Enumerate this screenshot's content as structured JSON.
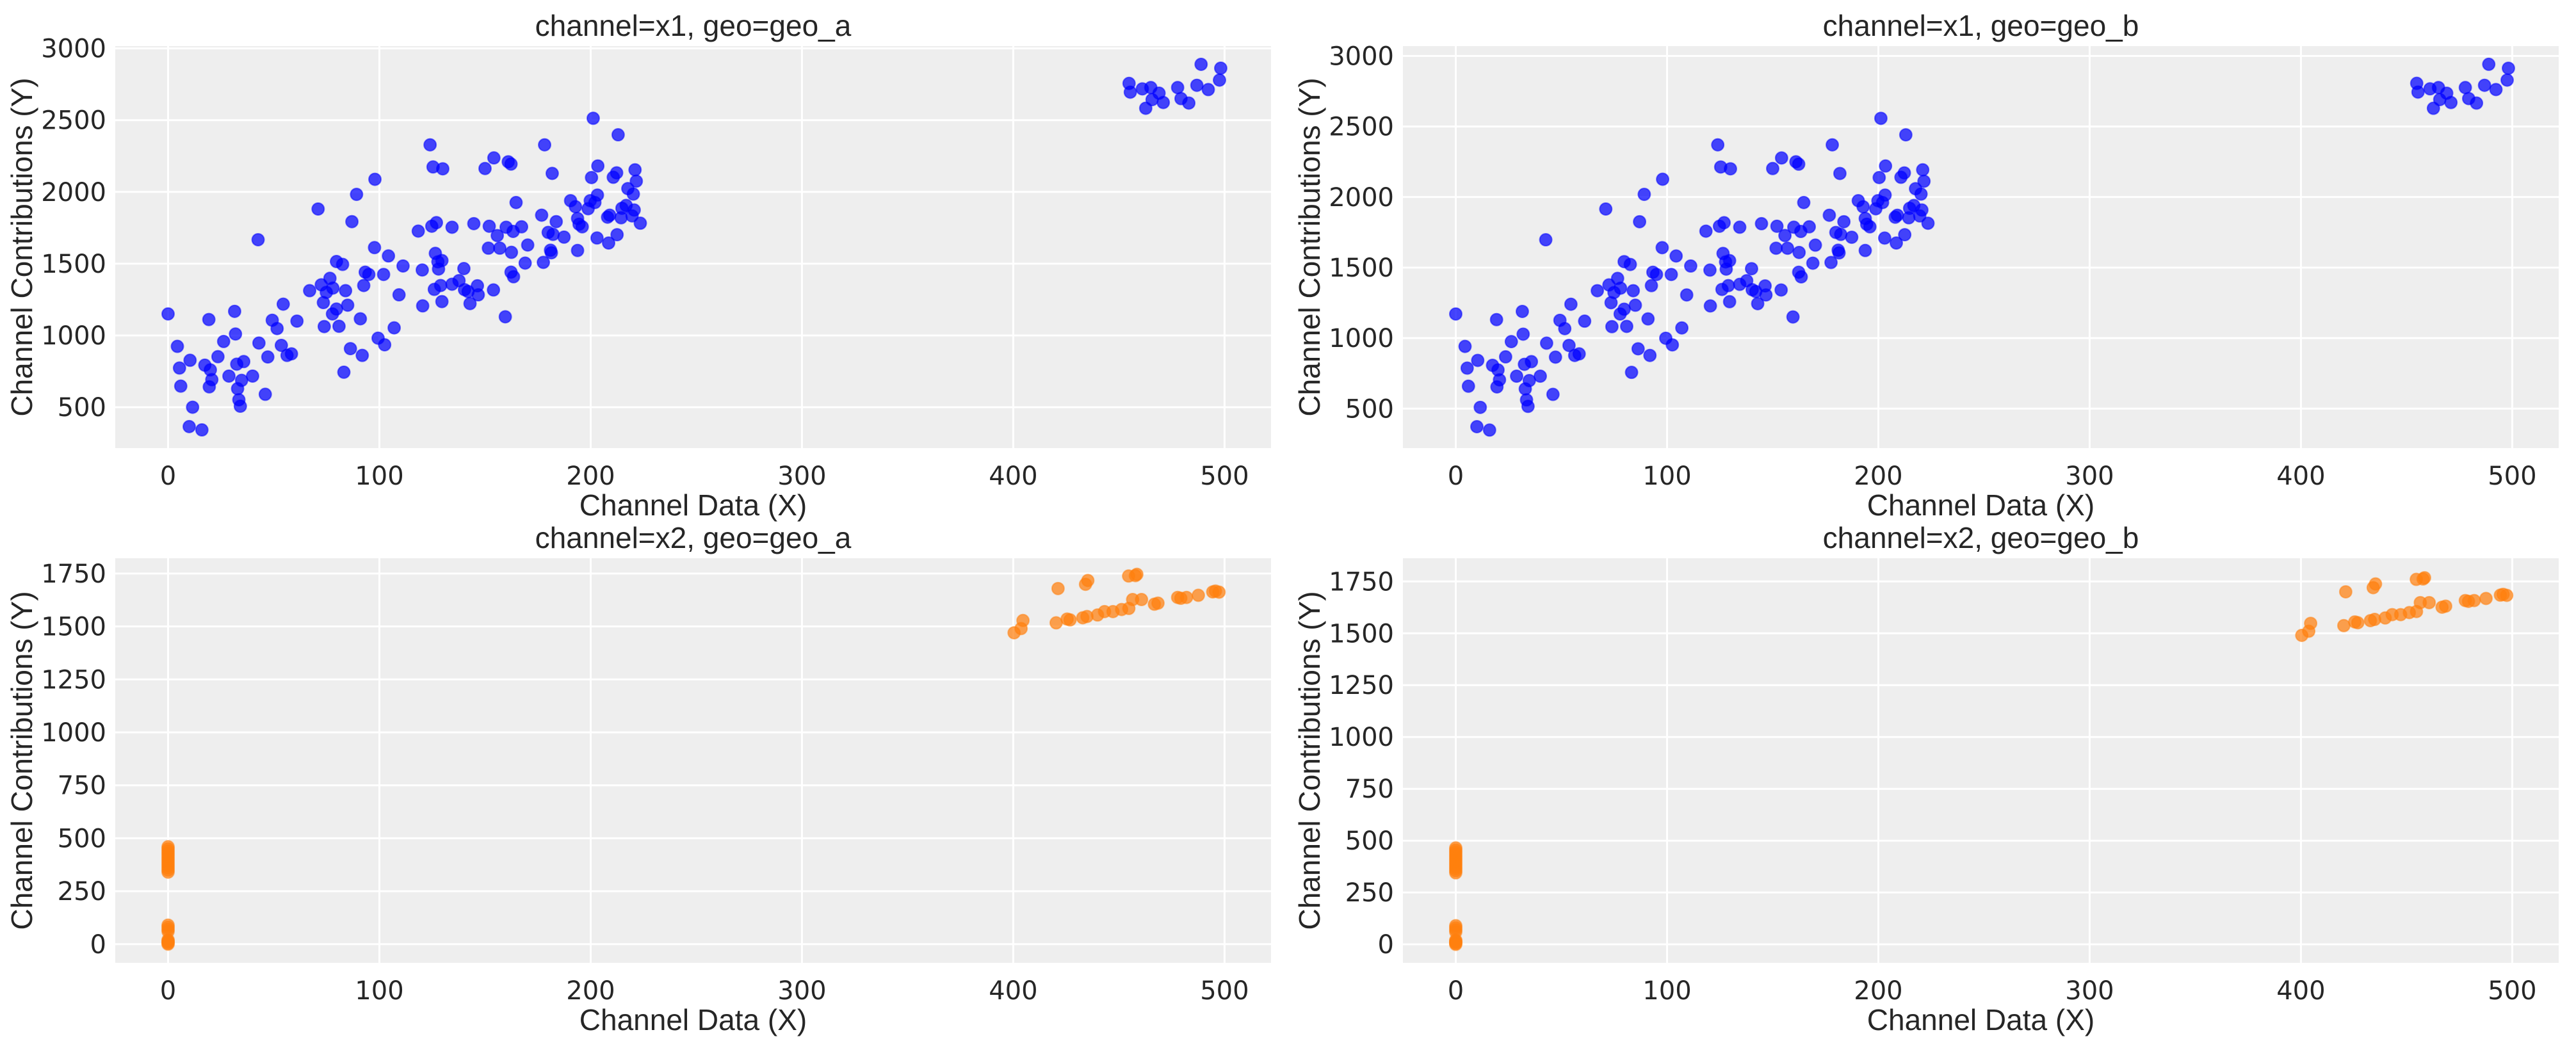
{
  "chart_data": [
    {
      "type": "scatter",
      "title": "channel=x1, geo=geo_a",
      "xlabel": "Channel Data (X)",
      "ylabel": "Channel Contributions (Y)",
      "xlim": [
        -25,
        522
      ],
      "ylim": [
        215,
        3016
      ],
      "xticks": [
        0,
        100,
        200,
        300,
        400,
        500
      ],
      "yticks": [
        500,
        1000,
        1500,
        2000,
        2500,
        3000
      ],
      "grid": true,
      "color": "#0000ff",
      "series": [
        {
          "name": "x1 geo_a",
          "x": [
            0,
            4.4,
            5.4,
            6,
            10.4,
            11.6,
            10,
            16,
            17.4,
            19.3,
            20,
            20.7,
            19.5,
            23.6,
            26.3,
            28.8,
            31.5,
            31.9,
            32.5,
            32.9,
            33.5,
            34.2,
            34.8,
            35.8,
            40,
            42.6,
            43,
            46,
            47.2,
            49.3,
            51.6,
            53.6,
            54.5,
            56.3,
            58.4,
            61,
            67,
            71,
            72.5,
            73.5,
            73.9,
            74.9,
            76.6,
            78,
            77.8,
            79.7,
            79.7,
            80.9,
            82.6,
            83.2,
            84,
            85,
            86.3,
            87,
            89.2,
            91,
            91.9,
            92.6,
            93.3,
            95,
            97.7,
            97.9,
            99.4,
            102,
            102.5,
            104.3,
            107,
            109.3,
            111.2,
            118.4,
            120.3,
            120.5,
            124,
            124.8,
            125.4,
            126,
            126.5,
            127,
            127.7,
            128,
            129,
            129.6,
            129.6,
            130,
            134.4,
            134.4,
            137.7,
            140,
            140.3,
            142,
            142.9,
            144.7,
            146.4,
            146.8,
            150,
            151.6,
            152,
            154,
            154.2,
            155.8,
            157,
            159.6,
            160,
            161,
            162.3,
            162.5,
            162.3,
            163.3,
            163.5,
            164.7,
            167.3,
            169,
            170.2,
            176.8,
            177.6,
            178.2,
            179.9,
            181,
            181.4,
            181.8,
            182.2,
            183.7,
            187.4,
            190.5,
            192.8,
            193.8,
            193.8,
            194.5,
            196,
            198.8,
            199.8,
            200.4,
            201.2,
            202,
            203,
            203.2,
            203.4,
            208.5,
            208,
            209,
            210.7,
            212.3,
            212.5,
            213,
            214.4,
            214.8,
            216.8,
            217.6,
            219.6,
            220.2,
            220.6,
            221,
            221.6,
            223.5,
            454.8,
            455.4,
            461.1,
            462.7,
            465.1,
            465.7,
            469,
            471,
            477.8,
            479.4,
            483.1,
            486.9,
            488.9,
            492.3,
            497.6,
            498.2
          ],
          "y": [
            1150,
            924,
            773,
            647,
            827,
            500,
            365,
            342,
            793,
            1111,
            760,
            692,
            642,
            852,
            958,
            717,
            1168,
            1010,
            800,
            629,
            552,
            507,
            687,
            818,
            717,
            1667,
            947,
            590,
            850,
            1106,
            1048,
            931,
            1218,
            861,
            872,
            1100,
            1312,
            1881,
            1353,
            1229,
            1062,
            1300,
            1398,
            1330,
            1150,
            1184,
            1515,
            1064,
            1495,
            744,
            1312,
            1211,
            908,
            1793,
            1983,
            1116,
            861,
            1348,
            1441,
            1425,
            1612,
            2088,
            981,
            1425,
            935,
            1554,
            1053,
            1283,
            1484,
            1727,
            1456,
            1206,
            2328,
            1761,
            2174,
            1321,
            1572,
            1786,
            1513,
            1463,
            1348,
            1236,
            1522,
            2161,
            1754,
            1357,
            1382,
            1466,
            1319,
            1306,
            1222,
            1779,
            1346,
            1283,
            2163,
            1608,
            1761,
            1317,
            2237,
            1696,
            1608,
            1130,
            1754,
            2210,
            2194,
            1579,
            1441,
            1725,
            1409,
            1926,
            1757,
            1504,
            1630,
            1838,
            1509,
            2328,
            1718,
            1594,
            1576,
            2129,
            1704,
            1793,
            1685,
            1939,
            1897,
            1815,
            1592,
            1775,
            1757,
            1883,
            1939,
            2100,
            2513,
            1926,
            1679,
            1978,
            2181,
            1644,
            1824,
            1838,
            2102,
            2133,
            1702,
            2398,
            1820,
            1886,
            1906,
            2023,
            1833,
            1985,
            1874,
            2154,
            2075,
            1782,
            2756,
            2695,
            2718,
            2583,
            2727,
            2643,
            2688,
            2623,
            2727,
            2650,
            2619,
            2743,
            2889,
            2713,
            2779,
            2862
          ]
        }
      ]
    },
    {
      "type": "scatter",
      "title": "channel=x1, geo=geo_b",
      "xlabel": "Channel Data (X)",
      "ylabel": "Channel Contributions (Y)",
      "xlim": [
        -25,
        522
      ],
      "ylim": [
        220,
        3070
      ],
      "xticks": [
        0,
        100,
        200,
        300,
        400,
        500
      ],
      "yticks": [
        500,
        1000,
        1500,
        2000,
        2500,
        3000
      ],
      "grid": true,
      "color": "#0000ff",
      "series": [
        {
          "name": "x1 geo_b",
          "x": [
            0,
            4.4,
            5.4,
            6,
            10.4,
            11.6,
            10,
            16,
            17.4,
            19.3,
            20,
            20.7,
            19.5,
            23.6,
            26.3,
            28.8,
            31.5,
            31.9,
            32.5,
            32.9,
            33.5,
            34.2,
            34.8,
            35.8,
            40,
            42.6,
            43,
            46,
            47.2,
            49.3,
            51.6,
            53.6,
            54.5,
            56.3,
            58.4,
            61,
            67,
            71,
            72.5,
            73.5,
            73.9,
            74.9,
            76.6,
            78,
            77.8,
            79.7,
            79.7,
            80.9,
            82.6,
            83.2,
            84,
            85,
            86.3,
            87,
            89.2,
            91,
            91.9,
            92.6,
            93.3,
            95,
            97.7,
            97.9,
            99.4,
            102,
            102.5,
            104.3,
            107,
            109.3,
            111.2,
            118.4,
            120.3,
            120.5,
            124,
            124.8,
            125.4,
            126,
            126.5,
            127,
            127.7,
            128,
            129,
            129.6,
            129.6,
            130,
            134.4,
            134.4,
            137.7,
            140,
            140.3,
            142,
            142.9,
            144.7,
            146.4,
            146.8,
            150,
            151.6,
            152,
            154,
            154.2,
            155.8,
            157,
            159.6,
            160,
            161,
            162.3,
            162.5,
            162.3,
            163.3,
            163.5,
            164.7,
            167.3,
            169,
            170.2,
            176.8,
            177.6,
            178.2,
            179.9,
            181,
            181.4,
            181.8,
            182.2,
            183.7,
            187.4,
            190.5,
            192.8,
            193.8,
            193.8,
            194.5,
            196,
            198.8,
            199.8,
            200.4,
            201.2,
            202,
            203,
            203.2,
            203.4,
            208.5,
            208,
            209,
            210.7,
            212.3,
            212.5,
            213,
            214.4,
            214.8,
            216.8,
            217.6,
            219.6,
            220.2,
            220.6,
            221,
            221.6,
            223.5,
            454.8,
            455.4,
            461.1,
            462.7,
            465.1,
            465.7,
            469,
            471,
            477.8,
            479.4,
            483.1,
            486.9,
            488.9,
            492.3,
            497.6,
            498.2
          ],
          "y": [
            1171,
            941,
            787,
            659,
            842,
            509,
            372,
            348,
            807,
            1131,
            774,
            704,
            654,
            867,
            975,
            730,
            1189,
            1028,
            814,
            640,
            562,
            516,
            699,
            833,
            730,
            1697,
            964,
            601,
            865,
            1126,
            1067,
            948,
            1240,
            877,
            888,
            1120,
            1336,
            1915,
            1377,
            1251,
            1081,
            1323,
            1423,
            1354,
            1171,
            1205,
            1542,
            1083,
            1522,
            757,
            1336,
            1233,
            924,
            1825,
            2019,
            1136,
            877,
            1372,
            1467,
            1451,
            1641,
            2126,
            999,
            1451,
            952,
            1582,
            1072,
            1306,
            1511,
            1758,
            1482,
            1228,
            2370,
            1793,
            2213,
            1345,
            1600,
            1818,
            1540,
            1489,
            1372,
            1258,
            1549,
            2200,
            1786,
            1381,
            1407,
            1492,
            1343,
            1330,
            1244,
            1811,
            1370,
            1306,
            2202,
            1637,
            1793,
            1341,
            2277,
            1727,
            1637,
            1150,
            1786,
            2250,
            2233,
            1607,
            1467,
            1756,
            1434,
            1961,
            1789,
            1531,
            1659,
            1871,
            1536,
            2370,
            1749,
            1623,
            1604,
            2167,
            1735,
            1825,
            1715,
            1974,
            1931,
            1848,
            1621,
            1807,
            1789,
            1917,
            1974,
            2138,
            2558,
            1961,
            1709,
            2014,
            2220,
            1674,
            1857,
            1871,
            2140,
            2171,
            1733,
            2441,
            1853,
            1920,
            1940,
            2059,
            1866,
            2021,
            1908,
            2193,
            2112,
            1814,
            2806,
            2744,
            2767,
            2629,
            2776,
            2691,
            2736,
            2670,
            2776,
            2698,
            2666,
            2792,
            2941,
            2762,
            2829,
            2913
          ]
        }
      ]
    },
    {
      "type": "scatter",
      "title": "channel=x2, geo=geo_a",
      "xlabel": "Channel Data (X)",
      "ylabel": "Channel Contributions (Y)",
      "xlim": [
        -25,
        522
      ],
      "ylim": [
        -88,
        1822
      ],
      "xticks": [
        0,
        100,
        200,
        300,
        400,
        500
      ],
      "yticks": [
        0,
        250,
        500,
        750,
        1000,
        1250,
        1500,
        1750
      ],
      "grid": true,
      "color": "#ff7f0e",
      "series": [
        {
          "name": "x2 geo_a",
          "x": [
            0,
            0,
            0,
            0,
            0,
            0,
            0,
            0,
            0,
            0,
            0,
            0,
            0,
            0,
            0,
            0,
            0,
            0,
            0,
            0,
            0,
            0,
            400.4,
            403.7,
            404.6,
            420.3,
            421.2,
            425.5,
            426.9,
            432.9,
            434.9,
            434.2,
            435.3,
            439.9,
            443.2,
            447.2,
            451.3,
            454.7,
            454.6,
            457.8,
            458.5,
            456.5,
            460.7,
            466.8,
            468.5,
            477.8,
            479.3,
            482,
            487.6,
            494.4,
            495.7,
            497.4
          ],
          "y": [
            0,
            5,
            10,
            15,
            20,
            60,
            70,
            80,
            90,
            340,
            350,
            360,
            370,
            380,
            390,
            400,
            410,
            420,
            430,
            440,
            450,
            460,
            1470,
            1490,
            1528,
            1517,
            1679,
            1535,
            1531,
            1541,
            1547,
            1699,
            1717,
            1554,
            1570,
            1570,
            1580,
            1585,
            1738,
            1740,
            1746,
            1627,
            1627,
            1605,
            1610,
            1637,
            1633,
            1637,
            1647,
            1663,
            1667,
            1662
          ]
        }
      ]
    },
    {
      "type": "scatter",
      "title": "channel=x2, geo=geo_b",
      "xlabel": "Channel Data (X)",
      "ylabel": "Channel Contributions (Y)",
      "xlim": [
        -25,
        522
      ],
      "ylim": [
        -89,
        1862
      ],
      "xticks": [
        0,
        100,
        200,
        300,
        400,
        500
      ],
      "yticks": [
        0,
        250,
        500,
        750,
        1000,
        1250,
        1500,
        1750
      ],
      "grid": true,
      "color": "#ff7f0e",
      "series": [
        {
          "name": "x2 geo_b",
          "x": [
            0,
            0,
            0,
            0,
            0,
            0,
            0,
            0,
            0,
            0,
            0,
            0,
            0,
            0,
            0,
            0,
            0,
            0,
            0,
            0,
            0,
            0,
            400.4,
            403.7,
            404.6,
            420.3,
            421.2,
            425.5,
            426.9,
            432.9,
            434.9,
            434.2,
            435.3,
            439.9,
            443.2,
            447.2,
            451.3,
            454.7,
            454.6,
            457.8,
            458.5,
            456.5,
            460.7,
            466.8,
            468.5,
            477.8,
            479.3,
            482,
            487.6,
            494.4,
            495.7,
            497.4
          ],
          "y": [
            0,
            5,
            10,
            15,
            20,
            60,
            70,
            80,
            90,
            345,
            355,
            365,
            375,
            385,
            395,
            405,
            415,
            425,
            435,
            445,
            455,
            465,
            1490,
            1510,
            1548,
            1537,
            1700,
            1555,
            1551,
            1561,
            1567,
            1720,
            1738,
            1574,
            1590,
            1590,
            1600,
            1605,
            1760,
            1762,
            1768,
            1648,
            1648,
            1626,
            1631,
            1658,
            1654,
            1658,
            1668,
            1684,
            1688,
            1683
          ]
        }
      ]
    }
  ]
}
